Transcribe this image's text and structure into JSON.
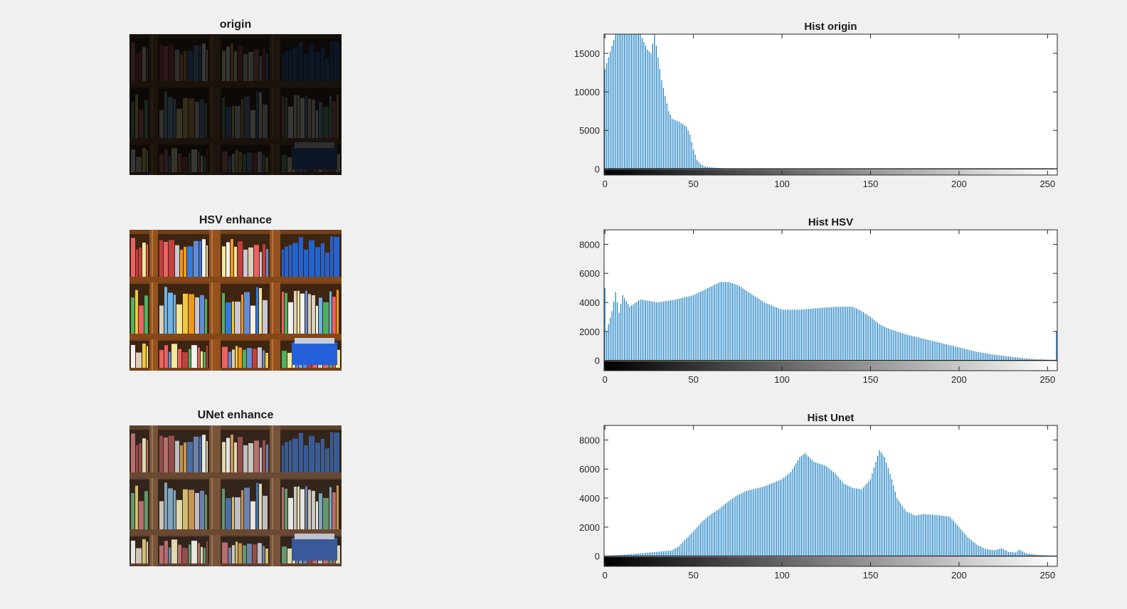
{
  "images": [
    {
      "title": "origin",
      "brightness": 0.23,
      "saturation": 0.75
    },
    {
      "title": "HSV enhance",
      "brightness": 1.0,
      "saturation": 1.25
    },
    {
      "title": "UNet enhance",
      "brightness": 0.95,
      "saturation": 0.7
    }
  ],
  "colors": {
    "bar": "#0072bd",
    "background": "#f0f0f0",
    "axes": "#262626"
  },
  "chart_data": [
    {
      "type": "bar",
      "title": "Hist origin",
      "xlim": [
        0,
        255
      ],
      "ylim": [
        -800,
        17500
      ],
      "xticks": [
        0,
        50,
        100,
        150,
        200,
        250
      ],
      "yticks": [
        0,
        5000,
        10000,
        15000
      ],
      "grid": false,
      "colorbar": "grayscale",
      "points": [
        [
          0,
          13000
        ],
        [
          2,
          14500
        ],
        [
          4,
          16000
        ],
        [
          6,
          17500
        ],
        [
          10,
          17500
        ],
        [
          18,
          17500
        ],
        [
          20,
          17500
        ],
        [
          22,
          16500
        ],
        [
          24,
          15500
        ],
        [
          26,
          15000
        ],
        [
          28,
          17500
        ],
        [
          30,
          14500
        ],
        [
          32,
          11500
        ],
        [
          34,
          9500
        ],
        [
          36,
          7500
        ],
        [
          38,
          6500
        ],
        [
          40,
          6300
        ],
        [
          42,
          6100
        ],
        [
          44,
          5800
        ],
        [
          46,
          5500
        ],
        [
          48,
          4500
        ],
        [
          50,
          2500
        ],
        [
          52,
          1200
        ],
        [
          54,
          600
        ],
        [
          56,
          350
        ],
        [
          60,
          200
        ],
        [
          66,
          80
        ],
        [
          70,
          30
        ],
        [
          80,
          5
        ],
        [
          255,
          0
        ]
      ]
    },
    {
      "type": "bar",
      "title": "Hist HSV",
      "xlim": [
        0,
        255
      ],
      "ylim": [
        -700,
        9000
      ],
      "xticks": [
        0,
        50,
        100,
        150,
        200,
        250
      ],
      "yticks": [
        0,
        2000,
        4000,
        6000,
        8000
      ],
      "grid": false,
      "colorbar": "grayscale",
      "points": [
        [
          0,
          5000
        ],
        [
          1,
          2000
        ],
        [
          2,
          2500
        ],
        [
          4,
          3400
        ],
        [
          6,
          4700
        ],
        [
          8,
          3300
        ],
        [
          10,
          4500
        ],
        [
          14,
          3700
        ],
        [
          20,
          4200
        ],
        [
          30,
          4000
        ],
        [
          40,
          4200
        ],
        [
          50,
          4500
        ],
        [
          55,
          4800
        ],
        [
          60,
          5100
        ],
        [
          65,
          5400
        ],
        [
          70,
          5400
        ],
        [
          75,
          5200
        ],
        [
          80,
          4800
        ],
        [
          85,
          4400
        ],
        [
          90,
          4000
        ],
        [
          100,
          3500
        ],
        [
          110,
          3500
        ],
        [
          120,
          3600
        ],
        [
          130,
          3700
        ],
        [
          140,
          3700
        ],
        [
          145,
          3400
        ],
        [
          150,
          3000
        ],
        [
          155,
          2500
        ],
        [
          160,
          2200
        ],
        [
          170,
          1800
        ],
        [
          180,
          1500
        ],
        [
          190,
          1200
        ],
        [
          200,
          900
        ],
        [
          210,
          600
        ],
        [
          220,
          400
        ],
        [
          230,
          250
        ],
        [
          240,
          120
        ],
        [
          250,
          60
        ],
        [
          254,
          50
        ],
        [
          255,
          2000
        ]
      ]
    },
    {
      "type": "bar",
      "title": "Hist Unet",
      "xlim": [
        0,
        255
      ],
      "ylim": [
        -700,
        9000
      ],
      "xticks": [
        0,
        50,
        100,
        150,
        200,
        250
      ],
      "yticks": [
        0,
        2000,
        4000,
        6000,
        8000
      ],
      "grid": false,
      "colorbar": "grayscale",
      "points": [
        [
          0,
          0
        ],
        [
          5,
          50
        ],
        [
          10,
          100
        ],
        [
          20,
          200
        ],
        [
          30,
          300
        ],
        [
          38,
          400
        ],
        [
          42,
          700
        ],
        [
          45,
          1100
        ],
        [
          50,
          1700
        ],
        [
          55,
          2400
        ],
        [
          60,
          2900
        ],
        [
          65,
          3300
        ],
        [
          70,
          3800
        ],
        [
          75,
          4200
        ],
        [
          80,
          4500
        ],
        [
          90,
          4800
        ],
        [
          100,
          5300
        ],
        [
          105,
          5800
        ],
        [
          110,
          6800
        ],
        [
          113,
          7100
        ],
        [
          118,
          6500
        ],
        [
          125,
          6200
        ],
        [
          130,
          5700
        ],
        [
          135,
          5000
        ],
        [
          140,
          4700
        ],
        [
          145,
          4600
        ],
        [
          150,
          5300
        ],
        [
          153,
          6500
        ],
        [
          155,
          7300
        ],
        [
          158,
          6800
        ],
        [
          162,
          5300
        ],
        [
          165,
          4000
        ],
        [
          170,
          3100
        ],
        [
          175,
          2800
        ],
        [
          180,
          2900
        ],
        [
          190,
          2800
        ],
        [
          195,
          2700
        ],
        [
          200,
          2000
        ],
        [
          205,
          1300
        ],
        [
          210,
          800
        ],
        [
          215,
          500
        ],
        [
          220,
          400
        ],
        [
          224,
          550
        ],
        [
          228,
          300
        ],
        [
          232,
          250
        ],
        [
          234,
          450
        ],
        [
          238,
          200
        ],
        [
          245,
          80
        ],
        [
          255,
          20
        ]
      ]
    }
  ]
}
